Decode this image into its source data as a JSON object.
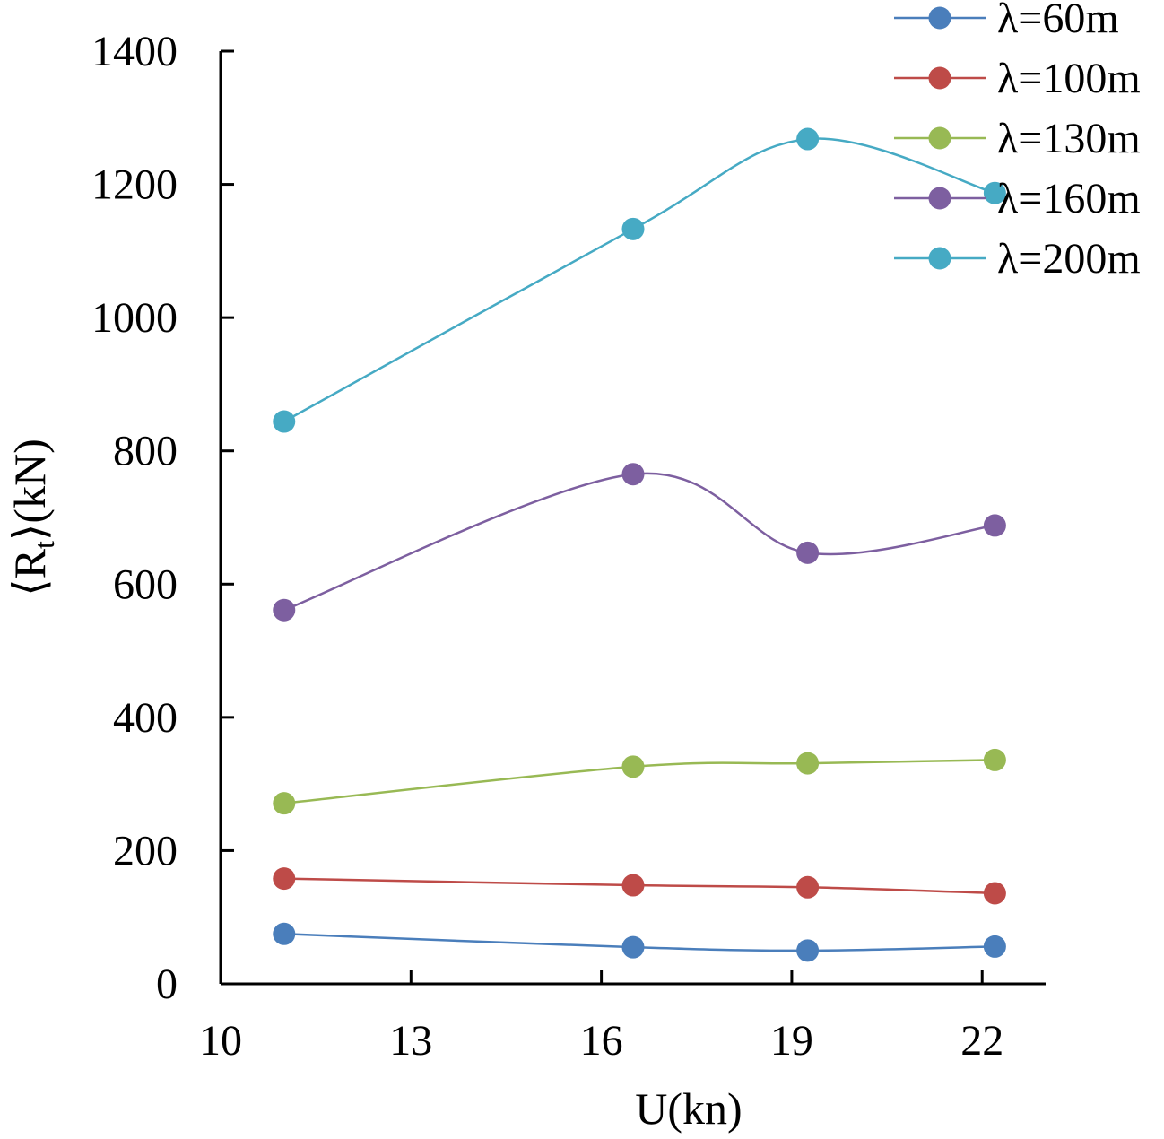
{
  "chart_data": {
    "type": "line",
    "title": "",
    "xlabel": "U(kn)",
    "ylabel": "⟨Rt⟩(kN)",
    "ylabel_parts": {
      "pre": "⟨R",
      "sub": "t",
      "post": "⟩(kN)"
    },
    "xlim": [
      10,
      23
    ],
    "ylim": [
      0,
      1400
    ],
    "x_ticks": [
      10,
      13,
      16,
      19,
      22
    ],
    "y_ticks": [
      0,
      200,
      400,
      600,
      800,
      1000,
      1200,
      1400
    ],
    "grid": false,
    "legend_position": "top-right",
    "x": [
      11,
      16.5,
      19.25,
      22.2
    ],
    "series": [
      {
        "name": "λ=60m",
        "color": "#4a7ebb",
        "values": [
          75,
          55,
          50,
          56
        ]
      },
      {
        "name": "λ=100m",
        "color": "#be4b48",
        "values": [
          158,
          148,
          145,
          136
        ]
      },
      {
        "name": "λ=130m",
        "color": "#98b954",
        "values": [
          271,
          326,
          331,
          336
        ]
      },
      {
        "name": "λ=160m",
        "color": "#7d5fa0",
        "values": [
          561,
          765,
          647,
          688
        ]
      },
      {
        "name": "λ=200m",
        "color": "#46aac4",
        "values": [
          844,
          1133,
          1268,
          1187
        ]
      }
    ]
  }
}
